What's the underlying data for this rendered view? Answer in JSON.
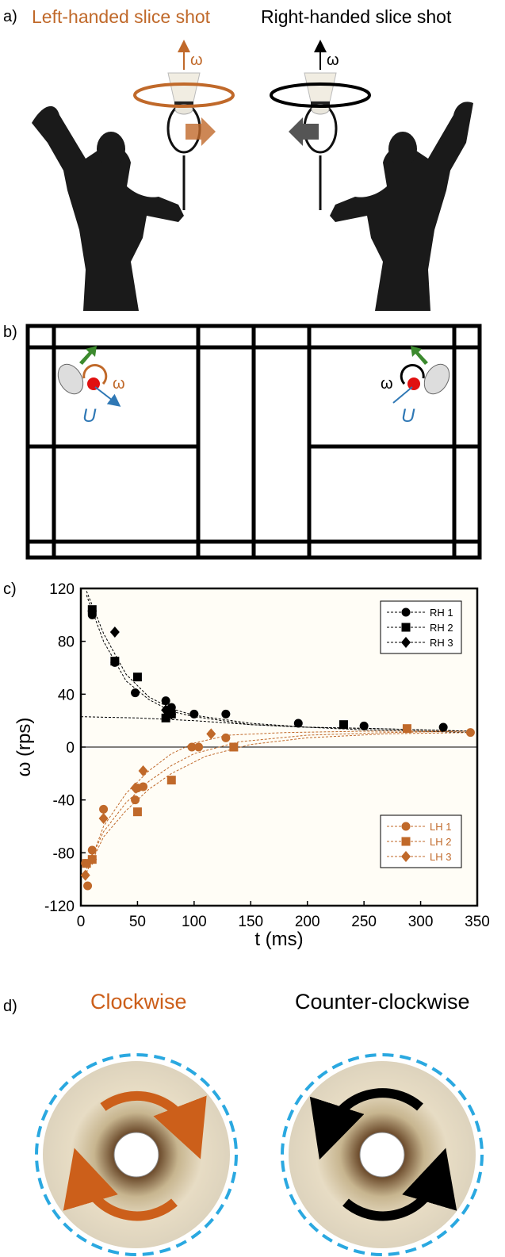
{
  "panel_a": {
    "label": "a)",
    "left_title": "Left-handed slice shot",
    "right_title": "Right-handed slice shot",
    "omega": "ω",
    "colors": {
      "orange": "#c0692a",
      "black": "#000000"
    }
  },
  "panel_b": {
    "label": "b)",
    "omega": "ω",
    "velocity": "U",
    "colors": {
      "orange": "#c0692a",
      "blue": "#2f78b5",
      "green": "#3c8a2e",
      "red": "#e01010"
    }
  },
  "panel_c": {
    "label": "c)"
  },
  "panel_d": {
    "label": "d)",
    "left_title": "Clockwise",
    "right_title": "Counter-clockwise",
    "colors": {
      "orange": "#cc5f1a",
      "cyan": "#2aa8e0",
      "black": "#000000"
    }
  },
  "chart_data": {
    "type": "scatter",
    "title": "",
    "xlabel": "t (ms)",
    "ylabel": "ω (rps)",
    "xlim": [
      0,
      350
    ],
    "ylim": [
      -120,
      120
    ],
    "xticks": [
      "0",
      "50",
      "100",
      "150",
      "200",
      "250",
      "300",
      "350"
    ],
    "yticks": [
      "120",
      "80",
      "40",
      "0",
      "-40",
      "-80",
      "-120"
    ],
    "legend_placement": [
      "top-right",
      "bottom-right"
    ],
    "grid": false,
    "series": [
      {
        "name": "RH 1",
        "marker": "circle",
        "color": "#000000",
        "points": [
          [
            10,
            100
          ],
          [
            30,
            64
          ],
          [
            48,
            41
          ],
          [
            75,
            35
          ],
          [
            80,
            30
          ],
          [
            100,
            25
          ],
          [
            128,
            25
          ],
          [
            192,
            18
          ],
          [
            250,
            16
          ],
          [
            320,
            15
          ]
        ]
      },
      {
        "name": "RH 2",
        "marker": "square",
        "color": "#000000",
        "points": [
          [
            10,
            104
          ],
          [
            30,
            65
          ],
          [
            50,
            53
          ],
          [
            75,
            22
          ],
          [
            80,
            25
          ],
          [
            232,
            17
          ]
        ]
      },
      {
        "name": "RH 3",
        "marker": "diamond",
        "color": "#000000",
        "points": [
          [
            10,
            103
          ],
          [
            30,
            87
          ],
          [
            75,
            28
          ],
          [
            80,
            25
          ]
        ]
      },
      {
        "name": "LH 1",
        "marker": "circle",
        "color": "#c0692a",
        "points": [
          [
            4,
            -88
          ],
          [
            6,
            -105
          ],
          [
            10,
            -78
          ],
          [
            20,
            -47
          ],
          [
            48,
            -40
          ],
          [
            50,
            -31
          ],
          [
            55,
            -30
          ],
          [
            98,
            0
          ],
          [
            104,
            0
          ],
          [
            128,
            7
          ],
          [
            344,
            11
          ]
        ]
      },
      {
        "name": "LH 2",
        "marker": "square",
        "color": "#c0692a",
        "points": [
          [
            5,
            -88
          ],
          [
            10,
            -85
          ],
          [
            50,
            -49
          ],
          [
            80,
            -25
          ],
          [
            135,
            0
          ],
          [
            288,
            14
          ]
        ]
      },
      {
        "name": "LH 3",
        "marker": "diamond",
        "color": "#c0692a",
        "points": [
          [
            4,
            -97
          ],
          [
            10,
            -85
          ],
          [
            20,
            -54
          ],
          [
            48,
            -31
          ],
          [
            55,
            -18
          ],
          [
            115,
            10
          ]
        ]
      }
    ],
    "fits": [
      {
        "color": "#000000",
        "points": [
          [
            5,
            118
          ],
          [
            20,
            86
          ],
          [
            40,
            55
          ],
          [
            60,
            38
          ],
          [
            80,
            29
          ],
          [
            100,
            24
          ],
          [
            150,
            18
          ],
          [
            200,
            15
          ],
          [
            260,
            14
          ],
          [
            345,
            12
          ]
        ]
      },
      {
        "color": "#000000",
        "points": [
          [
            5,
            115
          ],
          [
            20,
            80
          ],
          [
            40,
            50
          ],
          [
            60,
            36
          ],
          [
            80,
            27
          ],
          [
            100,
            23
          ],
          [
            150,
            17
          ],
          [
            200,
            15
          ],
          [
            260,
            14
          ],
          [
            345,
            12
          ]
        ]
      },
      {
        "color": "#000000",
        "points": [
          [
            0,
            23
          ],
          [
            50,
            22
          ],
          [
            100,
            20
          ],
          [
            150,
            17
          ],
          [
            200,
            15
          ],
          [
            250,
            13
          ],
          [
            300,
            12
          ],
          [
            345,
            11
          ]
        ]
      },
      {
        "color": "#c0692a",
        "points": [
          [
            5,
            -95
          ],
          [
            20,
            -60
          ],
          [
            40,
            -35
          ],
          [
            60,
            -18
          ],
          [
            80,
            -5
          ],
          [
            100,
            3
          ],
          [
            130,
            9
          ],
          [
            180,
            11
          ],
          [
            250,
            12
          ],
          [
            345,
            12
          ]
        ]
      },
      {
        "color": "#c0692a",
        "points": [
          [
            5,
            -95
          ],
          [
            20,
            -68
          ],
          [
            40,
            -48
          ],
          [
            60,
            -32
          ],
          [
            80,
            -20
          ],
          [
            110,
            -7
          ],
          [
            150,
            2
          ],
          [
            200,
            7
          ],
          [
            270,
            10
          ],
          [
            345,
            11
          ]
        ]
      },
      {
        "color": "#c0692a",
        "points": [
          [
            5,
            -92
          ],
          [
            20,
            -64
          ],
          [
            40,
            -42
          ],
          [
            60,
            -26
          ],
          [
            80,
            -14
          ],
          [
            100,
            -5
          ],
          [
            140,
            4
          ],
          [
            200,
            9
          ],
          [
            270,
            11
          ],
          [
            345,
            12
          ]
        ]
      }
    ]
  }
}
